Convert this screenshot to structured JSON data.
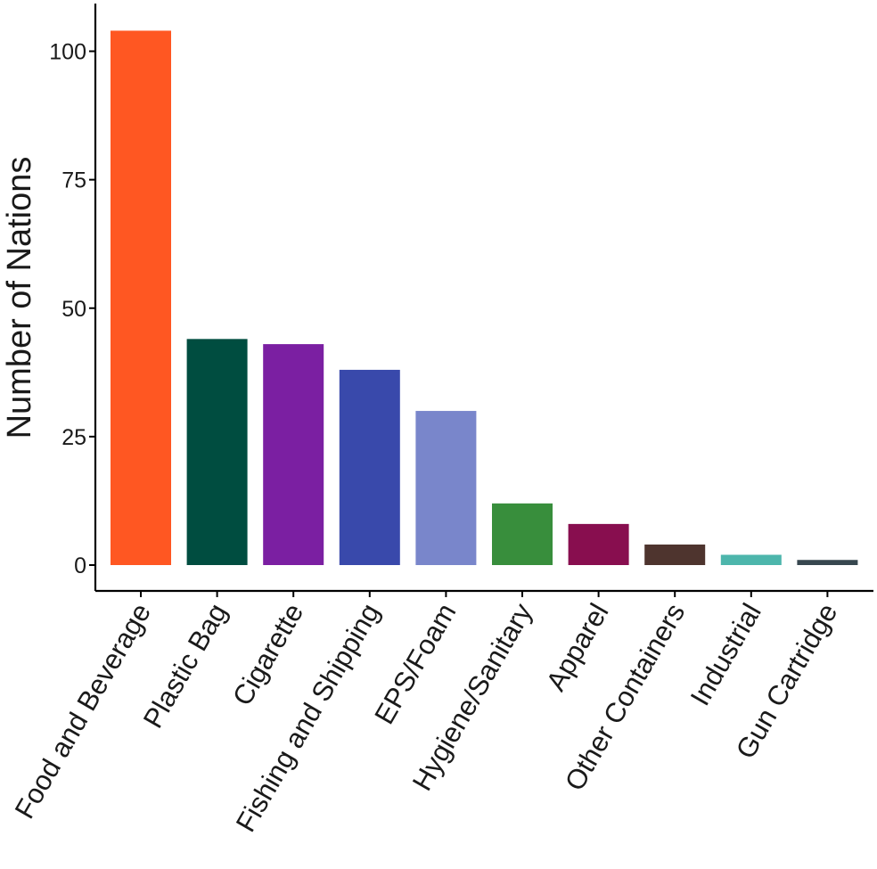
{
  "chart_data": {
    "type": "bar",
    "categories": [
      "Food and Beverage",
      "Plastic Bag",
      "Cigarette",
      "Fishing and Shipping",
      "EPS/Foam",
      "Hygiene/Sanitary",
      "Apparel",
      "Other Containers",
      "Industrial",
      "Gun Cartridge"
    ],
    "values": [
      104,
      44,
      43,
      38,
      30,
      12,
      8,
      4,
      2,
      1
    ],
    "colors": [
      "#FF5722",
      "#004D40",
      "#7B1FA2",
      "#3949AB",
      "#7986CB",
      "#388E3C",
      "#880E4F",
      "#4E342E",
      "#4DB6AC",
      "#37474F"
    ],
    "title": "",
    "xlabel": "",
    "ylabel": "Number of Nations",
    "ylim": [
      0,
      108
    ],
    "yticks": [
      0,
      25,
      50,
      75,
      100
    ],
    "grid": false,
    "legend": "none"
  }
}
